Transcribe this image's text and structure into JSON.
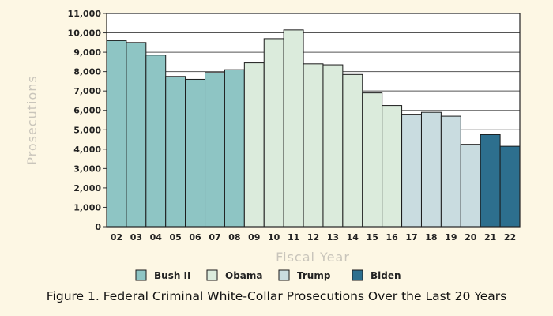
{
  "caption": "Figure 1. Federal Criminal White-Collar Prosecutions Over the Last 20 Years",
  "chart_data": {
    "type": "bar",
    "title": "",
    "xlabel": "Fiscal Year",
    "ylabel": "Prosecutions",
    "ylim": [
      0,
      11000
    ],
    "yticks": [
      "0",
      "1,000",
      "2,000",
      "3,000",
      "4,000",
      "5,000",
      "6,000",
      "7,000",
      "8,000",
      "9,000",
      "10,000",
      "11,000"
    ],
    "grid": "horizontal",
    "legend_position": "bottom",
    "categories": [
      "02",
      "03",
      "04",
      "05",
      "06",
      "07",
      "08",
      "09",
      "10",
      "11",
      "12",
      "13",
      "14",
      "15",
      "16",
      "17",
      "18",
      "19",
      "20",
      "21",
      "22"
    ],
    "values": [
      9600,
      9500,
      8850,
      7750,
      7600,
      7950,
      8100,
      8450,
      9700,
      10150,
      8400,
      8350,
      7850,
      6900,
      6250,
      5800,
      5900,
      5700,
      4250,
      4750,
      4150
    ],
    "groups": [
      "Bush II",
      "Bush II",
      "Bush II",
      "Bush II",
      "Bush II",
      "Bush II",
      "Bush II",
      "Obama",
      "Obama",
      "Obama",
      "Obama",
      "Obama",
      "Obama",
      "Obama",
      "Obama",
      "Trump",
      "Trump",
      "Trump",
      "Trump",
      "Biden",
      "Biden"
    ],
    "legend": [
      {
        "name": "Bush II",
        "color": "#8ec5c4"
      },
      {
        "name": "Obama",
        "color": "#dbebdc"
      },
      {
        "name": "Trump",
        "color": "#c9dce0"
      },
      {
        "name": "Biden",
        "color": "#2d6f8e"
      }
    ]
  }
}
